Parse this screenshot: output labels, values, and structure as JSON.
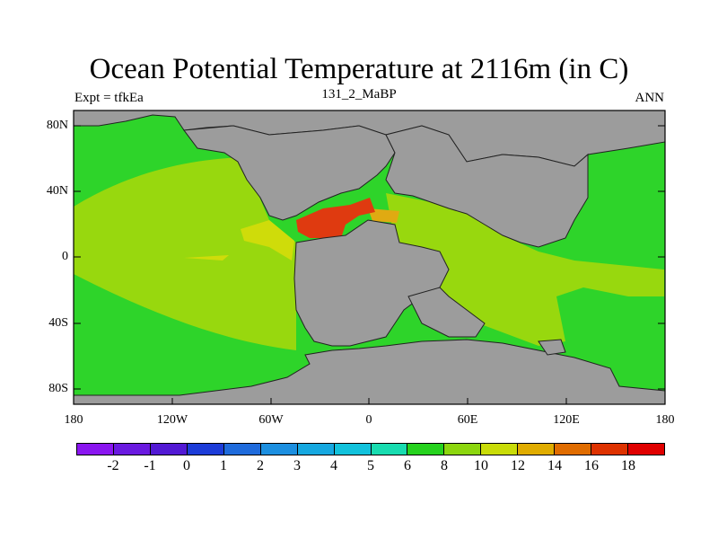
{
  "title": "Ocean Potential Temperature at 2116m (in C)",
  "subtitle_left": "Expt = tfkEa",
  "subtitle_center": "131_2_MaBP",
  "subtitle_right": "ANN",
  "y_ticks": [
    "80N",
    "40N",
    "0",
    "40S",
    "80S"
  ],
  "x_ticks": [
    "180",
    "120W",
    "60W",
    "0",
    "60E",
    "120E",
    "180"
  ],
  "colorbar": {
    "labels": [
      "-2",
      "-1",
      "0",
      "1",
      "2",
      "3",
      "4",
      "5",
      "6",
      "8",
      "10",
      "12",
      "14",
      "16",
      "18"
    ],
    "colors": [
      "#8a16f0",
      "#6a1ae0",
      "#5219d4",
      "#1c3cd8",
      "#1f6bdc",
      "#1c8fe0",
      "#16a8e0",
      "#12c2dc",
      "#18dcb0",
      "#26d21e",
      "#8cd60e",
      "#c9dc08",
      "#e0ac00",
      "#e06c00",
      "#de3200",
      "#e00000"
    ]
  },
  "map_colors": {
    "land": "#9c9c9c",
    "temp_6_8": "#2ed42a",
    "temp_8_10": "#98d80e",
    "temp_10_12": "#cfdc0a",
    "temp_12_14": "#e0aa12",
    "temp_16_18": "#df3a10"
  }
}
